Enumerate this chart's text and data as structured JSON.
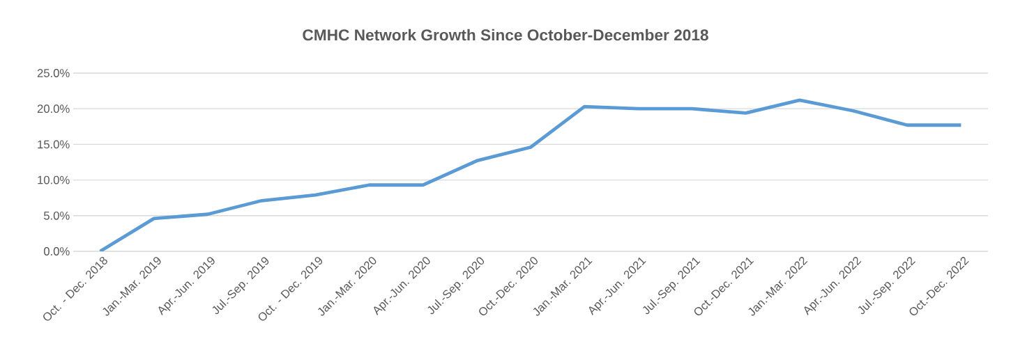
{
  "chart_data": {
    "type": "line",
    "title": "CMHC Network Growth Since October-December 2018",
    "categories": [
      "Oct. - Dec. 2018",
      "Jan.-Mar. 2019",
      "Apr.-Jun. 2019",
      "Jul.-Sep. 2019",
      "Oct. - Dec. 2019",
      "Jan.-Mar. 2020",
      "Apr.-Jun. 2020",
      "Jul.-Sep. 2020",
      "Oct.-Dec. 2020",
      "Jan.-Mar. 2021",
      "Apr.-Jun. 2021",
      "Jul.-Sep. 2021",
      "Oct.-Dec. 2021",
      "Jan.-Mar. 2022",
      "Apr.-Jun. 2022",
      "Jul.-Sep. 2022",
      "Oct.-Dec. 2022"
    ],
    "values": [
      0,
      4.6,
      5.2,
      7.1,
      7.9,
      9.3,
      9.3,
      12.7,
      14.6,
      20.3,
      20.0,
      20.0,
      19.4,
      21.2,
      19.7,
      17.7,
      17.7
    ],
    "color": "#5b9bd5",
    "ylim": [
      0,
      25
    ],
    "yticks": [
      {
        "value": 0,
        "label": "0.0%"
      },
      {
        "value": 5,
        "label": "5.0%"
      },
      {
        "value": 10,
        "label": "10.0%"
      },
      {
        "value": 15,
        "label": "15.0%"
      },
      {
        "value": 20,
        "label": "20.0%"
      },
      {
        "value": 25,
        "label": "25.0%"
      }
    ],
    "grid": "y",
    "marker": "none",
    "line_style": "solid"
  }
}
